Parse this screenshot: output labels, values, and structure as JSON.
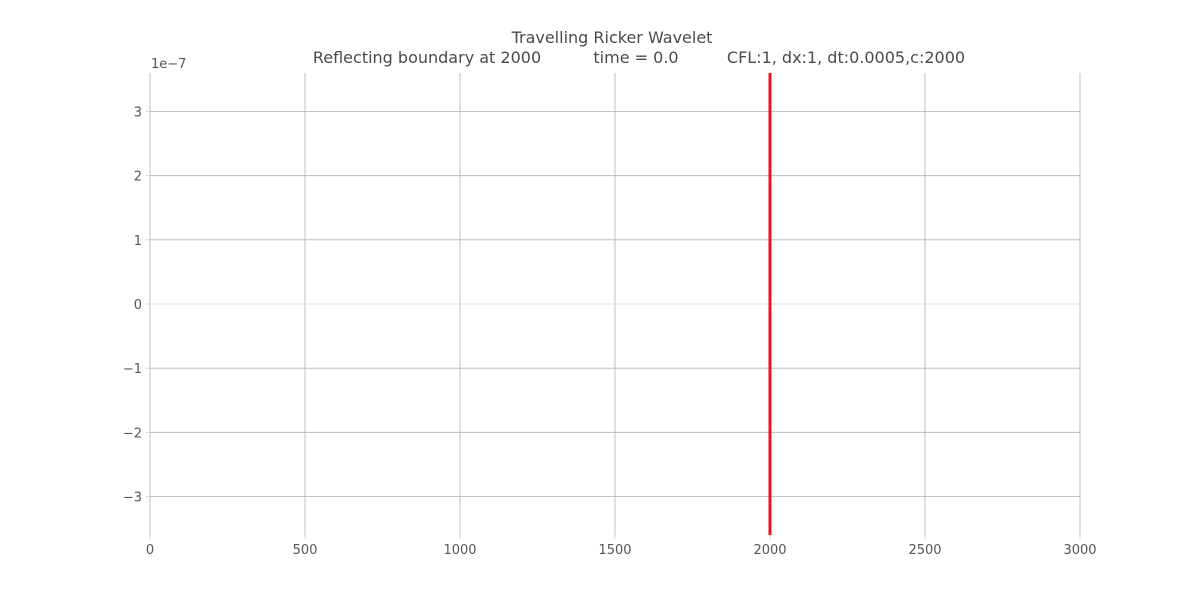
{
  "chart_data": {
    "type": "line",
    "title": "Travelling Ricker Wavelet",
    "subtitle_parts": [
      "Reflecting boundary at 2000",
      "time = 0.0",
      "CFL:1, dx:1, dt:0.0005,c:2000"
    ],
    "y_offset_label": "1e−7",
    "xlim": [
      0,
      3000
    ],
    "ylim": [
      -3.6,
      3.6
    ],
    "x_ticks": [
      0,
      500,
      1000,
      1500,
      2000,
      2500,
      3000
    ],
    "x_tick_labels": [
      "0",
      "500",
      "1000",
      "1500",
      "2000",
      "2500",
      "3000"
    ],
    "y_ticks": [
      -3,
      -2,
      -1,
      0,
      1,
      2,
      3
    ],
    "y_tick_labels": [
      "−3",
      "−2",
      "−1",
      "0",
      "1",
      "2",
      "3"
    ],
    "grid": true,
    "boundary_x": 2000,
    "boundary_color": "#e8141e",
    "series": [
      {
        "x": [
          0,
          3000
        ],
        "values": [
          0,
          0
        ],
        "color": "#dddddd"
      }
    ]
  }
}
